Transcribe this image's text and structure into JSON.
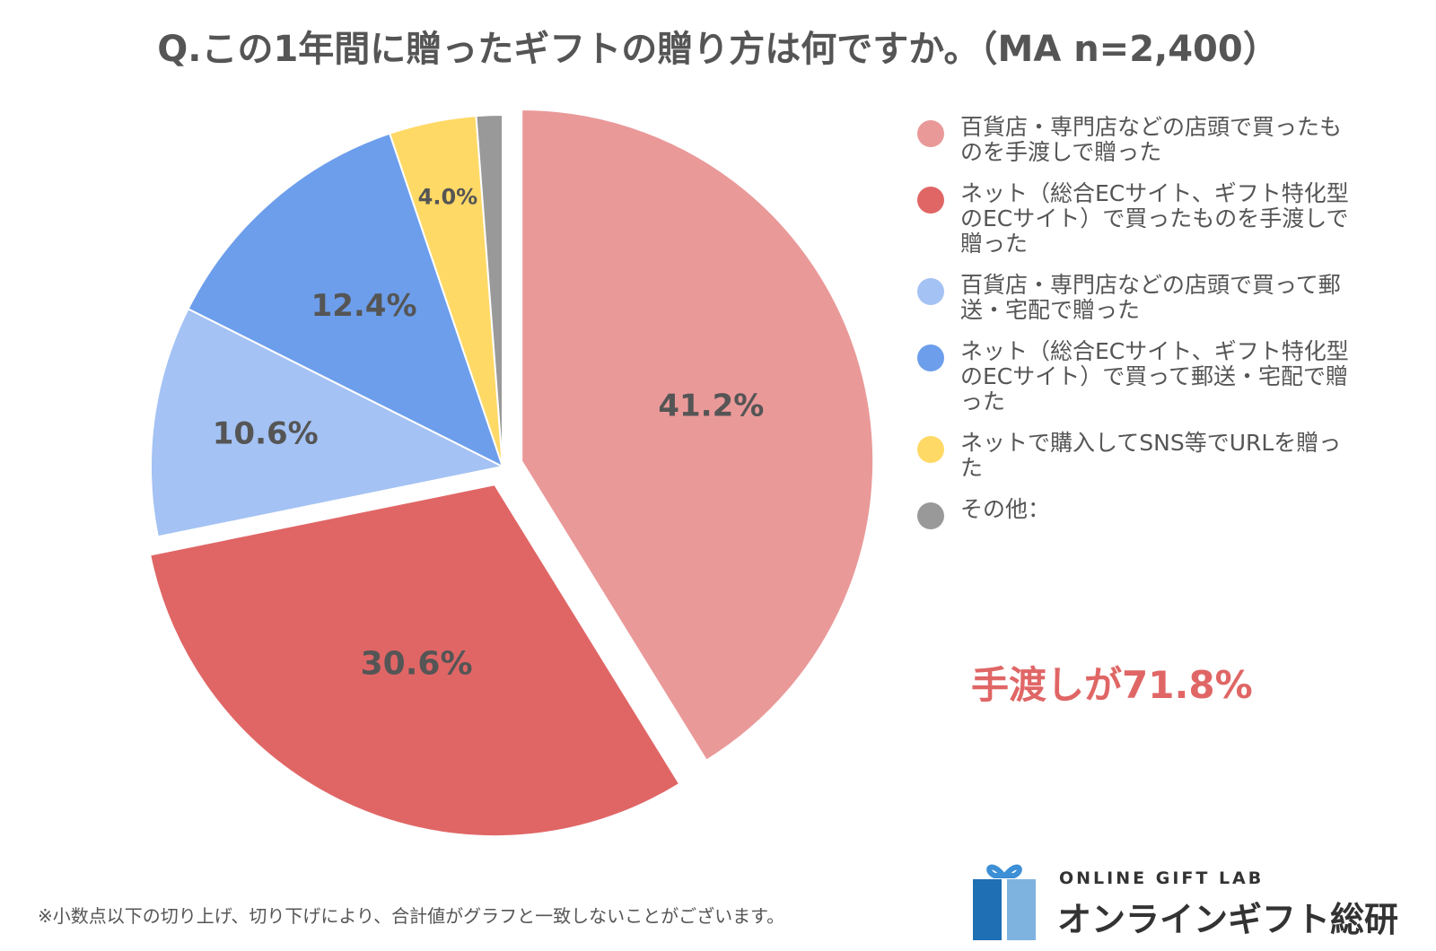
{
  "title": "Q.この1年間に贈ったギフトの贈り方は何ですか。（MA n=2,400）",
  "chart_data": {
    "type": "pie",
    "title": "Q.この1年間に贈ったギフトの贈り方は何ですか。（MA n=2,400）",
    "slices": [
      {
        "name": "百貨店・専門店などの店頭で買ったものを手渡しで贈った",
        "value": 41.2,
        "label": "41.2%",
        "color": "#ea9999",
        "exploded": true
      },
      {
        "name": "ネット（総合ECサイト、ギフト特化型のECサイト）で買ったものを手渡しで贈った",
        "value": 30.6,
        "label": "30.6%",
        "color": "#e06666",
        "exploded": true
      },
      {
        "name": "百貨店・専門店などの店頭で買って郵送・宅配で贈った",
        "value": 10.6,
        "label": "10.6%",
        "color": "#a4c2f4",
        "exploded": false
      },
      {
        "name": "ネット（総合ECサイト、ギフト特化型のECサイト）で買って郵送・宅配で贈った",
        "value": 12.4,
        "label": "12.4%",
        "color": "#6d9eeb",
        "exploded": false
      },
      {
        "name": "ネットで購入してSNS等でURLを贈った",
        "value": 4.0,
        "label": "4.0%",
        "color": "#ffd966",
        "exploded": false
      },
      {
        "name": "その他：",
        "value": 1.2,
        "label": "",
        "color": "#999999",
        "exploded": false
      }
    ],
    "legend_position": "right"
  },
  "callout": "手渡しが71.8%",
  "footnote": "※小数点以下の切り上げ、切り下げにより、合計値がグラフと一致しないことがございます。",
  "logo": {
    "icon": "gift-box-icon",
    "brand_en": "ONLINE GIFT LAB",
    "brand_ja": "オンラインギフト総研",
    "colors": {
      "ribbon": "#3d8fd6",
      "box_dark": "#1f6fb5",
      "box_light": "#7fb3df"
    }
  }
}
